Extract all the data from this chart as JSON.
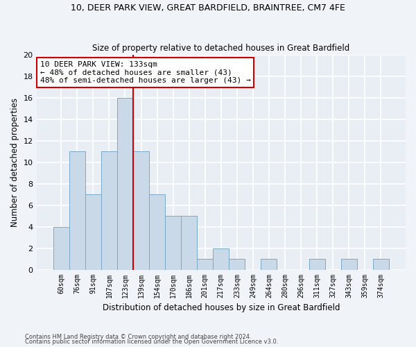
{
  "title1": "10, DEER PARK VIEW, GREAT BARDFIELD, BRAINTREE, CM7 4FE",
  "title2": "Size of property relative to detached houses in Great Bardfield",
  "xlabel": "Distribution of detached houses by size in Great Bardfield",
  "ylabel": "Number of detached properties",
  "categories": [
    "60sqm",
    "76sqm",
    "91sqm",
    "107sqm",
    "123sqm",
    "139sqm",
    "154sqm",
    "170sqm",
    "186sqm",
    "201sqm",
    "217sqm",
    "233sqm",
    "249sqm",
    "264sqm",
    "280sqm",
    "296sqm",
    "311sqm",
    "327sqm",
    "343sqm",
    "359sqm",
    "374sqm"
  ],
  "values": [
    4,
    11,
    7,
    11,
    16,
    11,
    7,
    5,
    5,
    1,
    2,
    1,
    0,
    1,
    0,
    0,
    1,
    0,
    1,
    0,
    1
  ],
  "bar_color": "#c9d9e8",
  "bar_edge_color": "#7aa8c8",
  "background_color": "#e8eef4",
  "grid_color": "#ffffff",
  "annotation_line_color": "#cc0000",
  "annotation_box_text": "10 DEER PARK VIEW: 133sqm\n← 48% of detached houses are smaller (43)\n48% of semi-detached houses are larger (43) →",
  "annotation_box_color": "#ffffff",
  "annotation_box_edge_color": "#cc0000",
  "ylim": [
    0,
    20
  ],
  "yticks": [
    0,
    2,
    4,
    6,
    8,
    10,
    12,
    14,
    16,
    18,
    20
  ],
  "footer1": "Contains HM Land Registry data © Crown copyright and database right 2024.",
  "footer2": "Contains public sector information licensed under the Open Government Licence v3.0.",
  "fig_bg": "#f0f4f8"
}
